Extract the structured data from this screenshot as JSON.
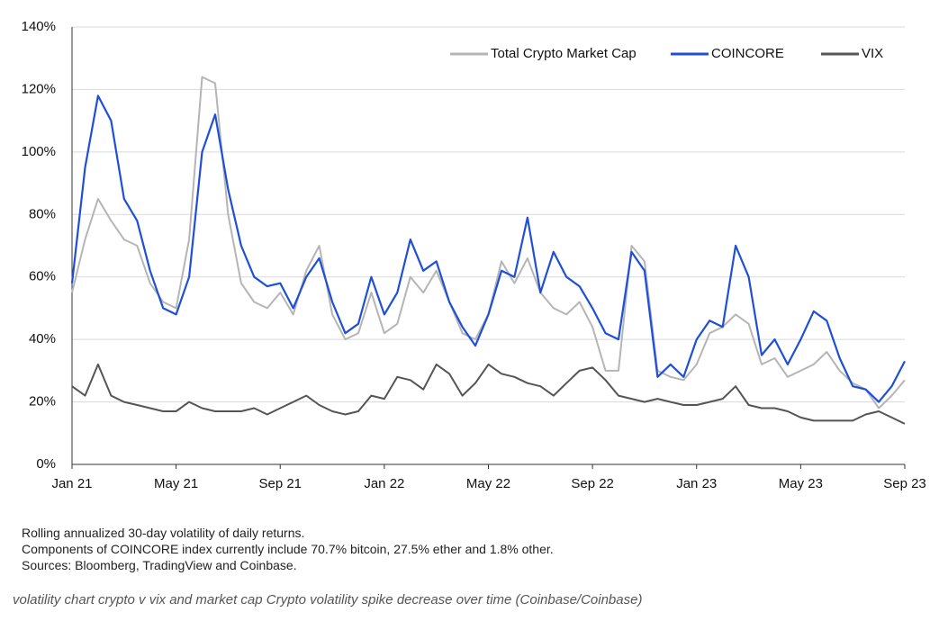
{
  "chart_data": {
    "type": "line",
    "x": [
      0,
      0.5,
      1,
      1.5,
      2,
      2.5,
      3,
      3.5,
      4,
      4.5,
      5,
      5.5,
      6,
      6.5,
      7,
      7.5,
      8,
      8.5,
      9,
      9.5,
      10,
      10.5,
      11,
      11.5,
      12,
      12.5,
      13,
      13.5,
      14,
      14.5,
      15,
      15.5,
      16,
      16.5,
      17,
      17.5,
      18,
      18.5,
      19,
      19.5,
      20,
      20.5,
      21,
      21.5,
      22,
      22.5,
      23,
      23.5,
      24,
      24.5,
      25,
      25.5,
      26,
      26.5,
      27,
      27.5,
      28,
      28.5,
      29,
      29.5,
      30,
      30.5,
      31,
      31.5,
      32
    ],
    "series": [
      {
        "name": "Total Crypto Market Cap",
        "color": "#b5b5b5",
        "values": [
          55,
          72,
          85,
          78,
          72,
          70,
          58,
          52,
          50,
          72,
          124,
          122,
          80,
          58,
          52,
          50,
          55,
          48,
          62,
          70,
          48,
          40,
          42,
          55,
          42,
          45,
          60,
          55,
          62,
          52,
          42,
          40,
          48,
          65,
          58,
          66,
          55,
          50,
          48,
          52,
          44,
          30,
          30,
          70,
          65,
          30,
          28,
          27,
          32,
          42,
          44,
          48,
          45,
          32,
          34,
          28,
          30,
          32,
          36,
          30,
          26,
          24,
          18,
          22,
          27
        ]
      },
      {
        "name": "COINCORE",
        "color": "#1f4fd6",
        "values": [
          58,
          95,
          118,
          110,
          85,
          78,
          62,
          50,
          48,
          60,
          100,
          112,
          88,
          70,
          60,
          57,
          58,
          50,
          60,
          66,
          52,
          42,
          45,
          60,
          48,
          55,
          72,
          62,
          65,
          52,
          44,
          38,
          48,
          62,
          60,
          79,
          55,
          68,
          60,
          57,
          50,
          42,
          40,
          68,
          62,
          28,
          32,
          28,
          40,
          46,
          44,
          70,
          60,
          35,
          40,
          32,
          40,
          49,
          46,
          34,
          25,
          24,
          20,
          25,
          33
        ]
      },
      {
        "name": "VIX",
        "color": "#555555",
        "values": [
          25,
          22,
          32,
          22,
          20,
          19,
          18,
          17,
          17,
          20,
          18,
          17,
          17,
          17,
          18,
          16,
          18,
          20,
          22,
          19,
          17,
          16,
          17,
          22,
          21,
          28,
          27,
          24,
          32,
          29,
          22,
          26,
          32,
          29,
          28,
          26,
          25,
          22,
          26,
          30,
          31,
          27,
          22,
          21,
          20,
          21,
          20,
          19,
          19,
          20,
          21,
          25,
          19,
          18,
          18,
          17,
          15,
          14,
          14,
          14,
          14,
          16,
          17,
          15,
          13
        ]
      }
    ],
    "xlim": [
      0,
      32
    ],
    "xticks": [
      {
        "value": 0,
        "label": "Jan 21"
      },
      {
        "value": 4,
        "label": "May 21"
      },
      {
        "value": 8,
        "label": "Sep 21"
      },
      {
        "value": 12,
        "label": "Jan 22"
      },
      {
        "value": 16,
        "label": "May 22"
      },
      {
        "value": 20,
        "label": "Sep 22"
      },
      {
        "value": 24,
        "label": "Jan 23"
      },
      {
        "value": 28,
        "label": "May 23"
      },
      {
        "value": 32,
        "label": "Sep 23"
      }
    ],
    "ylim": [
      0,
      140
    ],
    "yticks": [
      {
        "value": 0,
        "label": "0%"
      },
      {
        "value": 20,
        "label": "20%"
      },
      {
        "value": 40,
        "label": "40%"
      },
      {
        "value": 60,
        "label": "60%"
      },
      {
        "value": 80,
        "label": "80%"
      },
      {
        "value": 100,
        "label": "100%"
      },
      {
        "value": 120,
        "label": "120%"
      },
      {
        "value": 140,
        "label": "140%"
      }
    ],
    "grid": true,
    "legend": "top-right",
    "notes": [
      "Rolling annualized 30-day volatility of daily returns.",
      "Components of COINCORE index currently include 70.7% bitcoin, 27.5% ether and 1.8% other.",
      "Sources: Bloomberg, TradingView and Coinbase."
    ],
    "caption": "volatility chart crypto v vix and market cap Crypto volatility spike decrease over time (Coinbase/Coinbase)"
  }
}
